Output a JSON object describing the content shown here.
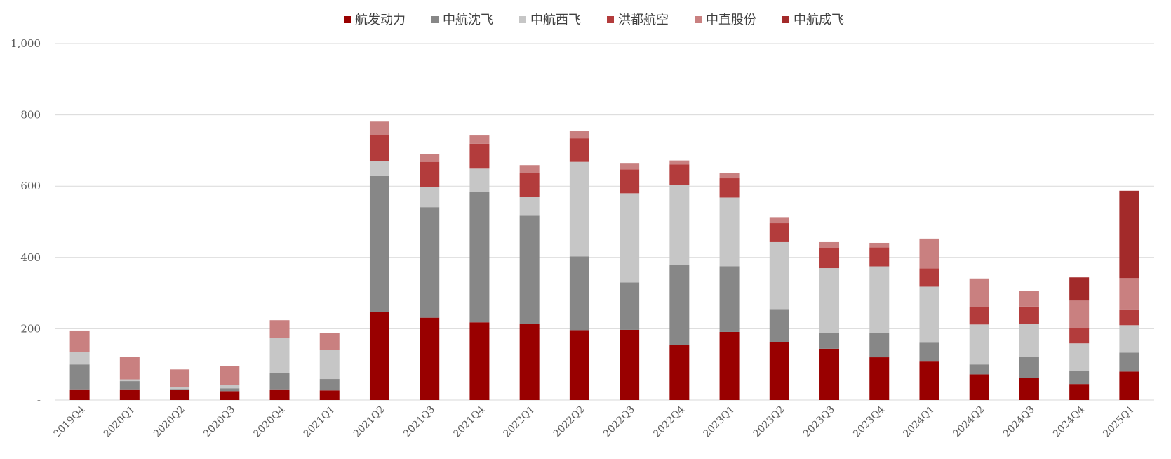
{
  "chart_data": {
    "type": "bar",
    "stacked": true,
    "legend_position": "top-center",
    "grid": true,
    "ylim": [
      0,
      1000
    ],
    "yticks": [
      "-",
      "200",
      "400",
      "600",
      "800",
      "1,000"
    ],
    "ytick_values": [
      0,
      200,
      400,
      600,
      800,
      1000
    ],
    "categories": [
      "2019Q4",
      "2020Q1",
      "2020Q2",
      "2020Q3",
      "2020Q4",
      "2021Q1",
      "2021Q2",
      "2021Q3",
      "2021Q4",
      "2022Q1",
      "2022Q2",
      "2022Q3",
      "2022Q4",
      "2023Q1",
      "2023Q2",
      "2023Q3",
      "2023Q4",
      "2024Q1",
      "2024Q2",
      "2024Q3",
      "2024Q4",
      "2025Q1"
    ],
    "series": [
      {
        "name": "航发动力",
        "color": "#990000",
        "values": [
          30,
          30,
          28,
          25,
          30,
          27,
          248,
          231,
          218,
          213,
          196,
          197,
          154,
          191,
          162,
          144,
          120,
          108,
          72,
          62,
          45,
          80
        ]
      },
      {
        "name": "中航沈飞",
        "color": "#878787",
        "values": [
          70,
          23,
          3,
          8,
          46,
          32,
          380,
          310,
          365,
          304,
          207,
          133,
          224,
          184,
          93,
          45,
          67,
          53,
          28,
          59,
          36,
          53
        ]
      },
      {
        "name": "中航西飞",
        "color": "#c6c6c6",
        "values": [
          35,
          5,
          5,
          10,
          98,
          82,
          42,
          57,
          66,
          52,
          265,
          250,
          225,
          193,
          188,
          181,
          188,
          157,
          112,
          92,
          78,
          77
        ]
      },
      {
        "name": "洪都航空",
        "color": "#b33c3c",
        "values": [
          0,
          0,
          0,
          0,
          0,
          0,
          73,
          70,
          70,
          67,
          66,
          67,
          58,
          54,
          53,
          57,
          53,
          51,
          49,
          49,
          42,
          44
        ]
      },
      {
        "name": "中直股份",
        "color": "#c98080",
        "values": [
          60,
          63,
          50,
          53,
          50,
          47,
          38,
          22,
          23,
          23,
          21,
          18,
          11,
          14,
          17,
          16,
          13,
          84,
          80,
          44,
          78,
          88
        ]
      },
      {
        "name": "中航成飞",
        "color": "#a32a2a",
        "values": [
          0,
          0,
          0,
          0,
          0,
          0,
          0,
          0,
          0,
          0,
          0,
          0,
          0,
          0,
          0,
          0,
          0,
          0,
          0,
          0,
          65,
          245
        ]
      }
    ]
  }
}
